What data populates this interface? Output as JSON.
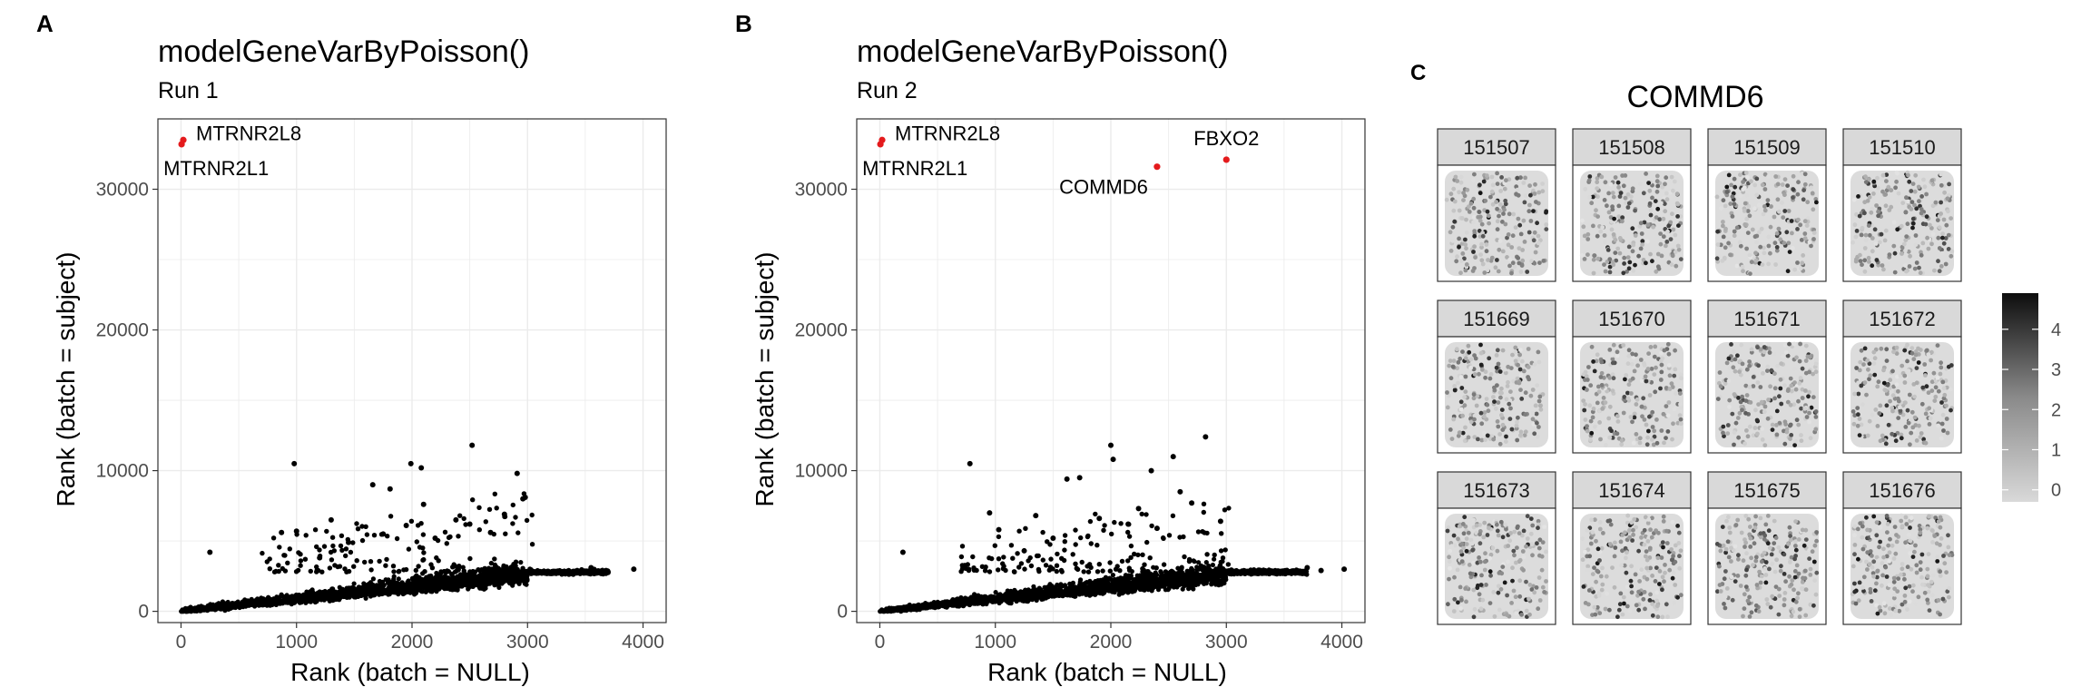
{
  "figure": {
    "panel_a": {
      "letter": "A",
      "title": "modelGeneVarByPoisson()",
      "subtitle": "Run 1",
      "xlabel": "Rank (batch = NULL)",
      "ylabel": "Rank (batch = subject)"
    },
    "panel_b": {
      "letter": "B",
      "title": "modelGeneVarByPoisson()",
      "subtitle": "Run 2",
      "xlabel": "Rank (batch = NULL)",
      "ylabel": "Rank (batch = subject)"
    },
    "panel_c": {
      "letter": "C",
      "title": "COMMD6",
      "samples": [
        "151507",
        "151508",
        "151509",
        "151510",
        "151669",
        "151670",
        "151671",
        "151672",
        "151673",
        "151674",
        "151675",
        "151676"
      ],
      "colorbar_ticks": [
        "0",
        "1",
        "2",
        "3",
        "4"
      ]
    }
  },
  "chart_data": [
    {
      "type": "scatter",
      "title": "modelGeneVarByPoisson()",
      "subtitle": "Run 1",
      "xlabel": "Rank (batch = NULL)",
      "ylabel": "Rank (batch = subject)",
      "xlim": [
        -200,
        4200
      ],
      "ylim": [
        -800,
        35000
      ],
      "xticks": [
        0,
        1000,
        2000,
        3000,
        4000
      ],
      "yticks": [
        0,
        10000,
        20000,
        30000
      ],
      "grid": true,
      "point_color": "#000000",
      "highlight_color": "#e41a1c",
      "highlighted_points": [
        {
          "label": "MTRNR2L8",
          "x": 20,
          "y": 33500
        },
        {
          "label": "MTRNR2L1",
          "x": 5,
          "y": 33200
        }
      ],
      "outliers": [
        {
          "x": 250,
          "y": 4200
        },
        {
          "x": 980,
          "y": 10500
        },
        {
          "x": 1000,
          "y": 5700
        },
        {
          "x": 870,
          "y": 5600
        },
        {
          "x": 1300,
          "y": 6500
        },
        {
          "x": 1660,
          "y": 9000
        },
        {
          "x": 1810,
          "y": 8700
        },
        {
          "x": 1990,
          "y": 10500
        },
        {
          "x": 2080,
          "y": 10200
        },
        {
          "x": 2520,
          "y": 11800
        },
        {
          "x": 2910,
          "y": 9800
        },
        {
          "x": 2980,
          "y": 8100
        },
        {
          "x": 2960,
          "y": 8000
        },
        {
          "x": 2380,
          "y": 6500
        },
        {
          "x": 2500,
          "y": 6200
        },
        {
          "x": 2680,
          "y": 5600
        },
        {
          "x": 2200,
          "y": 5200
        },
        {
          "x": 1950,
          "y": 6100
        },
        {
          "x": 1750,
          "y": 5500
        },
        {
          "x": 1450,
          "y": 4900
        },
        {
          "x": 2800,
          "y": 6900
        },
        {
          "x": 1200,
          "y": 3800
        },
        {
          "x": 2100,
          "y": 7600
        },
        {
          "x": 3920,
          "y": 3000
        },
        {
          "x": 3550,
          "y": 3100
        },
        {
          "x": 3680,
          "y": 2900
        }
      ]
    },
    {
      "type": "scatter",
      "title": "modelGeneVarByPoisson()",
      "subtitle": "Run 2",
      "xlabel": "Rank (batch = NULL)",
      "ylabel": "Rank (batch = subject)",
      "xlim": [
        -200,
        4200
      ],
      "ylim": [
        -800,
        35000
      ],
      "xticks": [
        0,
        1000,
        2000,
        3000,
        4000
      ],
      "yticks": [
        0,
        10000,
        20000,
        30000
      ],
      "grid": true,
      "point_color": "#000000",
      "highlight_color": "#e41a1c",
      "highlighted_points": [
        {
          "label": "MTRNR2L8",
          "x": 20,
          "y": 33500
        },
        {
          "label": "MTRNR2L1",
          "x": 5,
          "y": 33200
        },
        {
          "label": "COMMD6",
          "x": 2400,
          "y": 31600
        },
        {
          "label": "FBXO2",
          "x": 3000,
          "y": 32100
        }
      ],
      "outliers": [
        {
          "x": 200,
          "y": 4200
        },
        {
          "x": 780,
          "y": 10500
        },
        {
          "x": 950,
          "y": 7000
        },
        {
          "x": 1030,
          "y": 5800
        },
        {
          "x": 1350,
          "y": 6800
        },
        {
          "x": 1620,
          "y": 9400
        },
        {
          "x": 1730,
          "y": 9500
        },
        {
          "x": 2000,
          "y": 11800
        },
        {
          "x": 2020,
          "y": 10800
        },
        {
          "x": 2350,
          "y": 10000
        },
        {
          "x": 2540,
          "y": 11000
        },
        {
          "x": 2820,
          "y": 12400
        },
        {
          "x": 2600,
          "y": 8500
        },
        {
          "x": 2240,
          "y": 7300
        },
        {
          "x": 1900,
          "y": 6600
        },
        {
          "x": 2700,
          "y": 7700
        },
        {
          "x": 1500,
          "y": 5200
        },
        {
          "x": 2150,
          "y": 6200
        },
        {
          "x": 2400,
          "y": 5900
        },
        {
          "x": 1250,
          "y": 4300
        },
        {
          "x": 2950,
          "y": 6400
        },
        {
          "x": 4020,
          "y": 3000
        },
        {
          "x": 3700,
          "y": 3100
        },
        {
          "x": 3820,
          "y": 2900
        }
      ]
    }
  ]
}
